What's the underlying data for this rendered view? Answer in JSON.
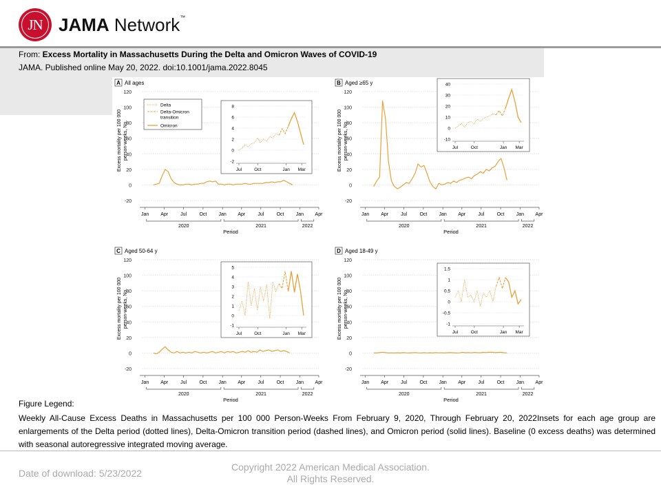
{
  "header": {
    "logo_badge": "JN",
    "logo_bold": "JAMA",
    "logo_rest": " Network",
    "logo_tm": "™",
    "from_prefix": "From: ",
    "article_title": "Excess  Mortality in Massachusetts  During the Delta and Omicron Waves of COVID-19",
    "citation": "JAMA. Published online  May 20, 2022.  doi:10.1001/jama.2022.8045"
  },
  "legend": {
    "title": "Figure Legend:",
    "text": "Weekly All-Cause Excess Deaths in Massachusetts per 100 000 Person-Weeks From February 9, 2020, Through February 20, 2022Insets for each age group are enlargements of the Delta period (dotted lines), Delta-Omicron transition period (dashed lines), and Omicron period (solid lines). Baseline (0 excess deaths) was determined with seasonal autoregressive integrated moving average."
  },
  "footer": {
    "download": "Date of download:  5/23/2022",
    "copyright_1": "Copyright 2022 American Medical Association.",
    "copyright_2": "All Rights Reserved."
  },
  "colors": {
    "line": "#e8a13a",
    "brand": "#c8102e",
    "axis": "#555555"
  },
  "chart_data": [
    {
      "type": "line",
      "panel": "A",
      "title": "All ages",
      "ylabel": "Excess mortality per 100 000 person-weeks, No.",
      "xlabel": "Period",
      "ylim": [
        -20,
        120
      ],
      "yticks": [
        -20,
        0,
        20,
        40,
        60,
        80,
        100,
        120
      ],
      "xticks": [
        "Jan",
        "Apr",
        "Jul",
        "Oct",
        "Jan",
        "Apr",
        "Jul",
        "Oct",
        "Jan",
        "Apr"
      ],
      "years": [
        "2020",
        "2021",
        "2022"
      ],
      "legend_entries": [
        "Delta",
        "Delta-Omicron transition",
        "Omicron"
      ],
      "x_start": "2020-02-09",
      "x_end": "2022-02-20",
      "x_step_days": 14,
      "y": [
        0,
        1,
        2,
        12,
        20,
        17,
        8,
        3,
        1,
        0,
        0,
        1,
        1,
        0,
        1,
        1,
        2,
        2,
        4,
        5,
        4,
        5,
        1,
        1,
        0,
        1,
        1,
        0,
        1,
        1,
        1,
        2,
        1,
        1,
        2,
        2,
        2,
        2,
        3,
        3,
        4,
        3,
        4,
        4,
        6,
        4,
        2,
        0
      ],
      "inset": {
        "ylim": [
          -2,
          8
        ],
        "yticks": [
          -2,
          0,
          2,
          4,
          6,
          8
        ],
        "xticks": [
          "Jul",
          "Oct",
          "Jan",
          "Mar"
        ],
        "delta": [
          0,
          0.4,
          1,
          0.6,
          1.2,
          1.3,
          2.2,
          1.4,
          2,
          1.6,
          2.5,
          2.2,
          3,
          2.7
        ],
        "transition": [
          2.7,
          3.9,
          3,
          4.3
        ],
        "omicron": [
          4.3,
          5.7,
          6.8,
          5.2,
          3.1,
          1
        ]
      }
    },
    {
      "type": "line",
      "panel": "B",
      "title": "Aged ≥65 y",
      "ylabel": "Excess mortality per 100 000 person-weeks, No.",
      "xlabel": "Period",
      "ylim": [
        -20,
        120
      ],
      "yticks": [
        -20,
        0,
        20,
        40,
        60,
        80,
        100,
        120
      ],
      "xticks": [
        "Jan",
        "Apr",
        "Jul",
        "Oct",
        "Jan",
        "Apr",
        "Jul",
        "Oct",
        "Jan",
        "Apr"
      ],
      "years": [
        "2020",
        "2021",
        "2022"
      ],
      "x_start": "2020-02-09",
      "x_end": "2022-02-20",
      "x_step_days": 14,
      "y": [
        -2,
        5,
        10,
        108,
        85,
        30,
        5,
        -2,
        -5,
        -3,
        0,
        3,
        2,
        8,
        15,
        27,
        23,
        25,
        15,
        4,
        -2,
        -5,
        2,
        0,
        1,
        3,
        2,
        5,
        3,
        6,
        7,
        9,
        10,
        8,
        12,
        14,
        17,
        15,
        20,
        18,
        22,
        24,
        30,
        34,
        22,
        6
      ],
      "inset": {
        "ylim": [
          -10,
          40
        ],
        "yticks": [
          -10,
          0,
          10,
          20,
          30,
          40
        ],
        "xticks": [
          "Jul",
          "Oct",
          "Jan",
          "Mar"
        ],
        "delta": [
          0,
          2,
          4,
          1,
          5,
          6,
          4,
          8,
          6,
          9,
          10,
          11,
          13,
          12
        ],
        "transition": [
          12,
          16,
          11,
          18
        ],
        "omicron": [
          18,
          27,
          35,
          24,
          10,
          5
        ]
      }
    },
    {
      "type": "line",
      "panel": "C",
      "title": "Aged 50-64 y",
      "ylabel": "Excess mortality per 100 000 person-weeks, No.",
      "xlabel": "Period",
      "ylim": [
        -20,
        120
      ],
      "yticks": [
        -20,
        0,
        20,
        40,
        60,
        80,
        100,
        120
      ],
      "xticks": [
        "Jan",
        "Apr",
        "Jul",
        "Oct",
        "Jan",
        "Apr",
        "Jul",
        "Oct",
        "Jan",
        "Apr"
      ],
      "years": [
        "2020",
        "2021",
        "2022"
      ],
      "x_start": "2020-02-09",
      "x_end": "2022-02-20",
      "x_step_days": 14,
      "y": [
        0,
        -1,
        1,
        5,
        8,
        4,
        1,
        0,
        2,
        0,
        1,
        0,
        1,
        0,
        2,
        1,
        0,
        1,
        0,
        1,
        2,
        0,
        1,
        2,
        0,
        2,
        1,
        2,
        0,
        1,
        2,
        1,
        3,
        1,
        2,
        1,
        4,
        2,
        3,
        4,
        2,
        3,
        4,
        2,
        3,
        2,
        0
      ],
      "inset": {
        "ylim": [
          -1,
          5
        ],
        "yticks": [
          -1,
          0,
          1,
          2,
          3,
          4,
          5
        ],
        "xticks": [
          "Jul",
          "Oct",
          "Jan",
          "Mar"
        ],
        "delta": [
          0.5,
          1.5,
          0,
          3.5,
          1,
          2.8,
          0.5,
          3,
          1.5,
          3.2,
          -0.3,
          3.5,
          2.5,
          3.3
        ],
        "transition": [
          3.3,
          2.8,
          4.6,
          2.5
        ],
        "omicron": [
          2.5,
          4.6,
          2.4,
          4.3,
          2.5,
          0
        ]
      }
    },
    {
      "type": "line",
      "panel": "D",
      "title": "Aged 18-49 y",
      "ylabel": "Excess mortality per 100 000 person-weeks, No.",
      "xlabel": "Period",
      "ylim": [
        -20,
        120
      ],
      "yticks": [
        -20,
        0,
        20,
        40,
        60,
        80,
        100,
        120
      ],
      "xticks": [
        "Jan",
        "Apr",
        "Jul",
        "Oct",
        "Jan",
        "Apr",
        "Jul",
        "Oct",
        "Jan",
        "Apr"
      ],
      "years": [
        "2020",
        "2021",
        "2022"
      ],
      "x_start": "2020-02-09",
      "x_end": "2022-02-20",
      "x_step_days": 14,
      "y": [
        0,
        0,
        0.5,
        1,
        0.5,
        0,
        0.2,
        0,
        0.3,
        0,
        0.5,
        0.2,
        0,
        0.3,
        0.5,
        0.2,
        0,
        0.4,
        0.1,
        0.3,
        0,
        0.5,
        0.2,
        0.3,
        0,
        0.4,
        0.5,
        0.3,
        0,
        0.2,
        0.8,
        0.3,
        0.5,
        0.2,
        0.7,
        0.4,
        0.3,
        0.8,
        0.6,
        0.9,
        1,
        0.5,
        0.7,
        0.9,
        0.3,
        0
      ],
      "inset": {
        "ylim": [
          -1,
          1.5
        ],
        "yticks": [
          -1.0,
          -0.5,
          0,
          0.5,
          1.0,
          1.5
        ],
        "xticks": [
          "Jul",
          "Oct",
          "Jan",
          "Mar"
        ],
        "delta": [
          0.2,
          0.5,
          0,
          1.0,
          0.2,
          0.3,
          0,
          0.5,
          -0.2,
          0.4,
          0.2,
          0.5,
          0,
          0.7
        ],
        "transition": [
          0.7,
          1.1,
          0.6,
          1.1
        ],
        "omicron": [
          1.1,
          0.9,
          0.2,
          0.5,
          -0.1,
          0.1
        ]
      }
    }
  ]
}
